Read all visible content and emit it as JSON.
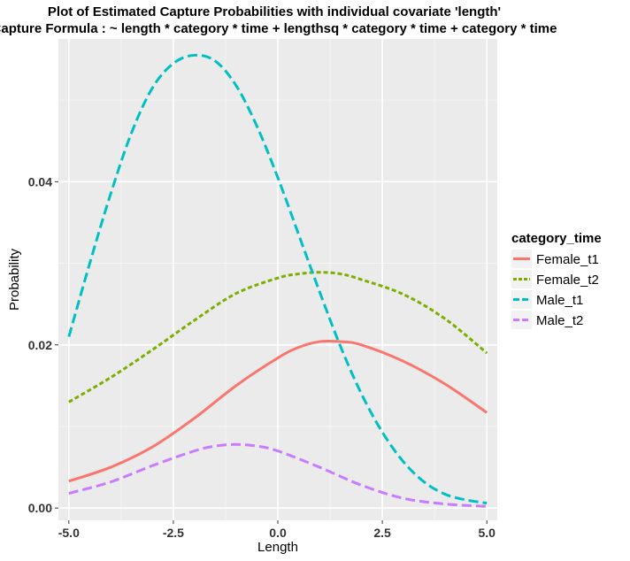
{
  "chart_data": {
    "type": "line",
    "title": "Plot of Estimated Capture Probabilities with individual covariate 'length'",
    "subtitle": "Capture Formula :  ~ length * category * time + lengthsq * category * time + category * time",
    "xlabel": "Length",
    "ylabel": "Probability",
    "xlim": [
      -5.25,
      5.25
    ],
    "ylim": [
      -0.0015,
      0.0575
    ],
    "xticks": [
      -5.0,
      -2.5,
      0.0,
      2.5,
      5.0
    ],
    "xtick_labels": [
      "-5.0",
      "-2.5",
      "0.0",
      "2.5",
      "5.0"
    ],
    "yticks": [
      0.0,
      0.02,
      0.04
    ],
    "ytick_labels": [
      "0.00",
      "0.02",
      "0.04"
    ],
    "grid": true,
    "legend": {
      "title": "category_time",
      "position": "right"
    },
    "series": [
      {
        "name": "Female_t1",
        "color": "#F8766D",
        "dash": "solid",
        "x": [
          -5.0,
          -4.0,
          -3.0,
          -2.0,
          -1.0,
          0.0,
          0.5,
          1.0,
          1.5,
          2.0,
          3.0,
          4.0,
          5.0
        ],
        "y": [
          0.0033,
          0.005,
          0.0075,
          0.011,
          0.015,
          0.0184,
          0.0197,
          0.0204,
          0.0204,
          0.02,
          0.018,
          0.0152,
          0.0117
        ]
      },
      {
        "name": "Female_t2",
        "color": "#7CAE00",
        "dash": "dotted",
        "x": [
          -5.0,
          -4.0,
          -3.0,
          -2.0,
          -1.0,
          0.0,
          0.5,
          1.0,
          1.5,
          2.0,
          3.0,
          4.0,
          5.0
        ],
        "y": [
          0.013,
          0.016,
          0.0194,
          0.023,
          0.0263,
          0.0282,
          0.0287,
          0.0289,
          0.0287,
          0.028,
          0.0262,
          0.0232,
          0.019
        ]
      },
      {
        "name": "Male_t1",
        "color": "#00BFC4",
        "dash": "dashed",
        "x": [
          -5.0,
          -4.5,
          -4.0,
          -3.5,
          -3.0,
          -2.5,
          -2.0,
          -1.5,
          -1.0,
          -0.5,
          0.0,
          0.5,
          1.0,
          1.5,
          2.0,
          2.5,
          3.0,
          3.5,
          4.0,
          4.5,
          5.0
        ],
        "y": [
          0.021,
          0.03,
          0.0385,
          0.046,
          0.0515,
          0.0545,
          0.0555,
          0.0548,
          0.0518,
          0.0468,
          0.0405,
          0.0335,
          0.0265,
          0.0198,
          0.014,
          0.0093,
          0.0057,
          0.0032,
          0.0017,
          0.001,
          0.0006
        ]
      },
      {
        "name": "Male_t2",
        "color": "#C77CFF",
        "dash": "dashed",
        "x": [
          -5.0,
          -4.0,
          -3.0,
          -2.0,
          -1.5,
          -1.0,
          -0.5,
          0.0,
          1.0,
          2.0,
          3.0,
          4.0,
          5.0
        ],
        "y": [
          0.0018,
          0.0032,
          0.0052,
          0.007,
          0.0076,
          0.0078,
          0.0076,
          0.007,
          0.005,
          0.0028,
          0.0012,
          0.0005,
          0.0002
        ]
      }
    ]
  }
}
